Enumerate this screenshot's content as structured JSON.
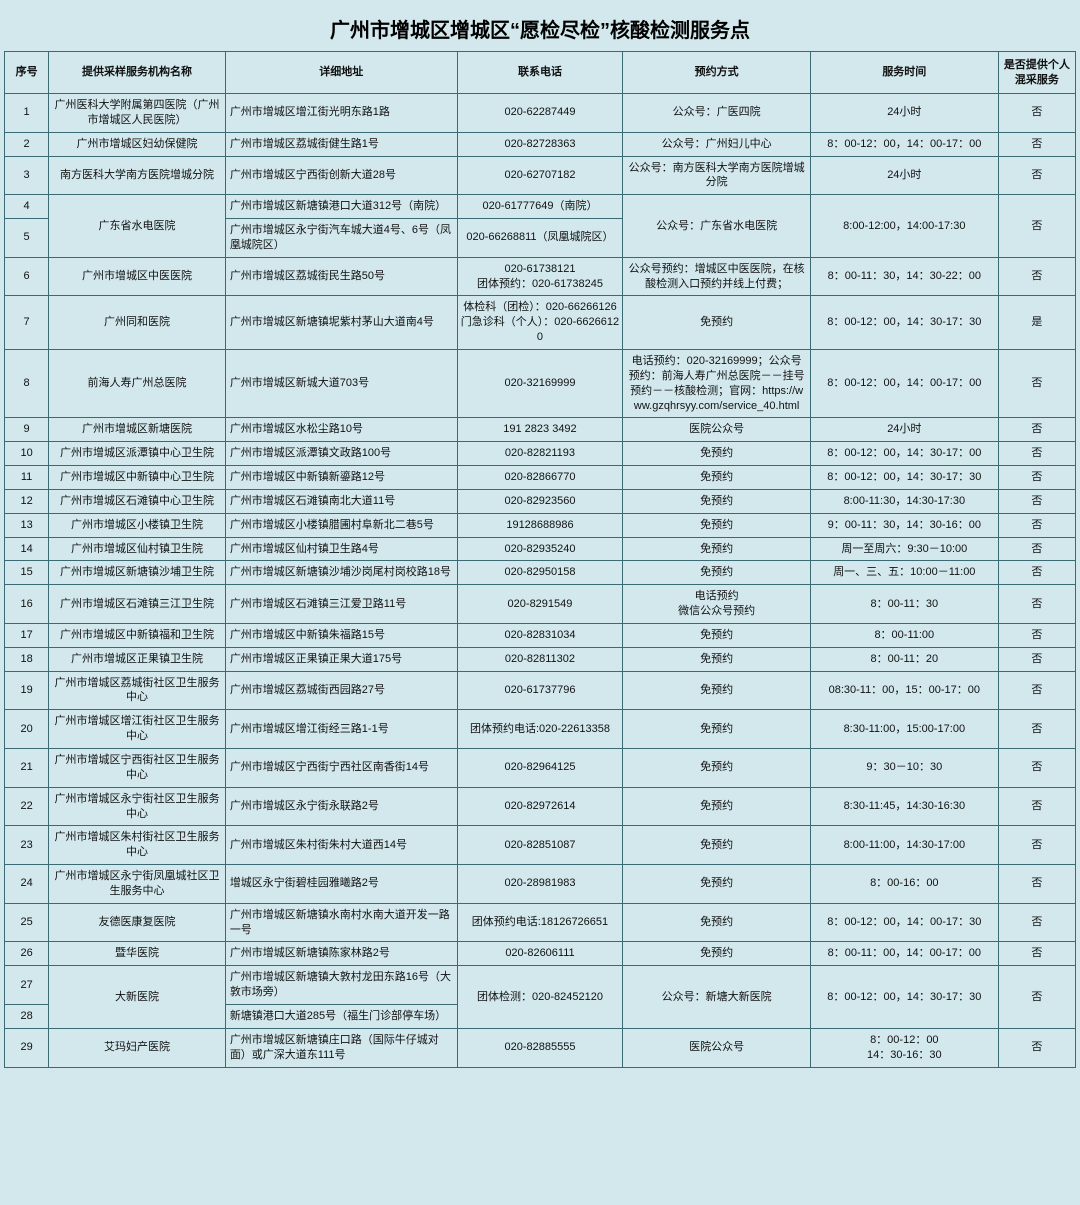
{
  "title": "广州市增城区增城区“愿检尽检”核酸检测服务点",
  "headers": {
    "idx": "序号",
    "org": "提供采样服务机构名称",
    "addr": "详细地址",
    "phone": "联系电话",
    "appt": "预约方式",
    "time": "服务时间",
    "mix": "是否提供个人混采服务"
  },
  "rows": [
    {
      "idx": "1",
      "org": "广州医科大学附属第四医院（广州市增城区人民医院）",
      "addr": "广州市增城区增江街光明东路1路",
      "phone": "020-62287449",
      "appt": "公众号：广医四院",
      "time": "24小时",
      "mix": "否"
    },
    {
      "idx": "2",
      "org": "广州市增城区妇幼保健院",
      "addr": "广州市增城区荔城街健生路1号",
      "phone": "020-82728363",
      "appt": "公众号：广州妇儿中心",
      "time": "8：00-12：00，14：00-17：00",
      "mix": "否"
    },
    {
      "idx": "3",
      "org": "南方医科大学南方医院增城分院",
      "addr": "广州市增城区宁西街创新大道28号",
      "phone": "020-62707182",
      "appt": "公众号：南方医科大学南方医院增城分院",
      "time": "24小时",
      "mix": "否"
    },
    {
      "idx": "4",
      "org_span": 2,
      "org": "广东省水电医院",
      "addr": "广州市增城区新塘镇港口大道312号（南院）",
      "phone": "020-61777649（南院）",
      "appt_span": 2,
      "appt": "公众号：广东省水电医院",
      "time_span": 2,
      "time": "8:00-12:00，14:00-17:30",
      "mix_span": 2,
      "mix": "否"
    },
    {
      "idx": "5",
      "addr": "广州市增城区永宁街汽车城大道4号、6号（凤凰城院区）",
      "phone": "020-66268811（凤凰城院区）"
    },
    {
      "idx": "6",
      "org": "广州市增城区中医医院",
      "addr": "广州市增城区荔城街民生路50号",
      "phone": "020-61738121\n团体预约：020-61738245",
      "appt": "公众号预约：增城区中医医院，在核酸检测入口预约并线上付费；",
      "time": "8：00-11：30，14：30-22：00",
      "mix": "否"
    },
    {
      "idx": "7",
      "org": "广州同和医院",
      "addr": "广州市增城区新塘镇坭紫村茅山大道南4号",
      "phone": "体检科（团检）：020-66266126\n门急诊科（个人）：020-66266120",
      "appt": "免预约",
      "time": "8：00-12：00，14：30-17：30",
      "mix": "是"
    },
    {
      "idx": "8",
      "org": "前海人寿广州总医院",
      "addr": "广州市增城区新城大道703号",
      "phone": "020-32169999",
      "appt": "电话预约：020-32169999；公众号预约：前海人寿广州总医院－－挂号预约－－核酸检测；官网：https://www.gzqhrsyy.com/service_40.html",
      "time": "8：00-12：00，14：00-17：00",
      "mix": "否"
    },
    {
      "idx": "9",
      "org": "广州市增城区新塘医院",
      "addr": "广州市增城区水松尘路10号",
      "phone": "191 2823 3492",
      "appt": "医院公众号",
      "time": "24小时",
      "mix": "否"
    },
    {
      "idx": "10",
      "org": "广州市增城区派潭镇中心卫生院",
      "addr": "广州市增城区派潭镇文政路100号",
      "phone": "020-82821193",
      "appt": "免预约",
      "time": "8：00-12：00，14：30-17：00",
      "mix": "否"
    },
    {
      "idx": "11",
      "org": "广州市增城区中新镇中心卫生院",
      "addr": "广州市增城区中新镇新鎏路12号",
      "phone": "020-82866770",
      "appt": "免预约",
      "time": "8：00-12：00，14：30-17：30",
      "mix": "否"
    },
    {
      "idx": "12",
      "org": "广州市增城区石滩镇中心卫生院",
      "addr": "广州市增城区石滩镇南北大道11号",
      "phone": "020-82923560",
      "appt": "免预约",
      "time": "8:00-11:30，14:30-17:30",
      "mix": "否"
    },
    {
      "idx": "13",
      "org": "广州市增城区小楼镇卫生院",
      "addr": "广州市增城区小楼镇腊圃村阜新北二巷5号",
      "phone": "19128688986",
      "appt": "免预约",
      "time": "9：00-11：30，14：30-16：00",
      "mix": "否"
    },
    {
      "idx": "14",
      "org": "广州市增城区仙村镇卫生院",
      "addr": "广州市增城区仙村镇卫生路4号",
      "phone": "020-82935240",
      "appt": "免预约",
      "time": "周一至周六：9:30－10:00",
      "mix": "否"
    },
    {
      "idx": "15",
      "org": "广州市增城区新塘镇沙埔卫生院",
      "addr": "广州市增城区新塘镇沙埔沙岗尾村岗校路18号",
      "phone": "020-82950158",
      "appt": "免预约",
      "time": "周一、三、五：10:00－11:00",
      "mix": "否"
    },
    {
      "idx": "16",
      "org": "广州市增城区石滩镇三江卫生院",
      "addr": "广州市增城区石滩镇三江爱卫路11号",
      "phone": "020-8291549",
      "appt": "电话预约\n微信公众号预约",
      "time": "8：00-11：30",
      "mix": "否"
    },
    {
      "idx": "17",
      "org": "广州市增城区中新镇福和卫生院",
      "addr": "广州市增城区中新镇朱福路15号",
      "phone": "020-82831034",
      "appt": "免预约",
      "time": "8：00-11:00",
      "mix": "否"
    },
    {
      "idx": "18",
      "org": "广州市增城区正果镇卫生院",
      "addr": "广州市增城区正果镇正果大道175号",
      "phone": "020-82811302",
      "appt": "免预约",
      "time": "8：00-11：20",
      "mix": "否"
    },
    {
      "idx": "19",
      "org": "广州市增城区荔城街社区卫生服务中心",
      "addr": "广州市增城区荔城街西园路27号",
      "phone": "020-61737796",
      "appt": "免预约",
      "time": "08:30-11：00，15：00-17：00",
      "mix": "否"
    },
    {
      "idx": "20",
      "org": "广州市增城区增江街社区卫生服务中心",
      "addr": "广州市增城区增江街经三路1-1号",
      "phone": "团体预约电话:020-22613358",
      "appt": "免预约",
      "time": "8:30-11:00，15:00-17:00",
      "mix": "否"
    },
    {
      "idx": "21",
      "org": "广州市增城区宁西街社区卫生服务中心",
      "addr": "广州市增城区宁西街宁西社区南香街14号",
      "phone": "020-82964125",
      "appt": "免预约",
      "time": "9：30－10：30",
      "mix": "否"
    },
    {
      "idx": "22",
      "org": "广州市增城区永宁街社区卫生服务中心",
      "addr": "广州市增城区永宁街永联路2号",
      "phone": "020-82972614",
      "appt": "免预约",
      "time": "8:30-11:45，14:30-16:30",
      "mix": "否"
    },
    {
      "idx": "23",
      "org": "广州市增城区朱村街社区卫生服务中心",
      "addr": "广州市增城区朱村街朱村大道西14号",
      "phone": "020-82851087",
      "appt": "免预约",
      "time": "8:00-11:00，14:30-17:00",
      "mix": "否"
    },
    {
      "idx": "24",
      "org": "广州市增城区永宁街凤凰城社区卫生服务中心",
      "addr": "增城区永宁街碧桂园雅曦路2号",
      "phone": "020-28981983",
      "appt": "免预约",
      "time": "8：00-16：00",
      "mix": "否"
    },
    {
      "idx": "25",
      "org": "友德医康复医院",
      "addr": "广州市增城区新塘镇水南村水南大道开发一路一号",
      "phone": "团体预约电话:18126726651",
      "appt": "免预约",
      "time": "8：00-12：00，14：00-17：30",
      "mix": "否"
    },
    {
      "idx": "26",
      "org": "暨华医院",
      "addr": "广州市增城区新塘镇陈家林路2号",
      "phone": "020-82606111",
      "appt": "免预约",
      "time": "8：00-11：00，14：00-17：00",
      "mix": "否"
    },
    {
      "idx": "27",
      "org_span": 2,
      "org": "大新医院",
      "addr": "广州市增城区新塘镇大敦村龙田东路16号（大敦市场旁）",
      "phone_span": 2,
      "phone": "团体检测：020-82452120",
      "appt_span": 2,
      "appt": "公众号：新塘大新医院",
      "time_span": 2,
      "time": "8：00-12：00，14：30-17：30",
      "mix_span": 2,
      "mix": "否"
    },
    {
      "idx": "28",
      "addr": "新塘镇港口大道285号（福生门诊部停车场）"
    },
    {
      "idx": "29",
      "org": "艾玛妇产医院",
      "addr": "广州市增城区新塘镇庄口路（国际牛仔城对面）或广深大道东111号",
      "phone": "020-82885555",
      "appt": "医院公众号",
      "time": "8：00-12：00\n14：30-16：30",
      "mix": "否"
    }
  ]
}
